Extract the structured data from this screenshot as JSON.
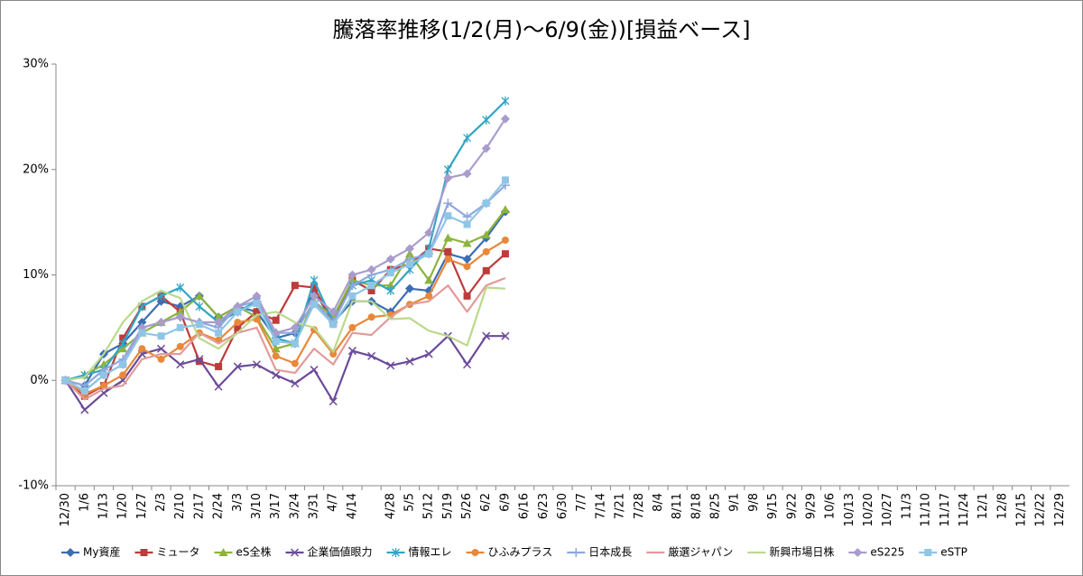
{
  "chart_data": {
    "type": "line",
    "title": "騰落率推移(1/2(月)～6/9(金))[損益ベース]",
    "categories": [
      "12/30",
      "1/6",
      "1/13",
      "1/20",
      "1/27",
      "2/3",
      "2/10",
      "2/17",
      "2/24",
      "3/3",
      "3/10",
      "3/17",
      "3/24",
      "3/31",
      "4/7",
      "4/14",
      null,
      "4/28",
      "5/5",
      "5/12",
      "5/19",
      "5/26",
      "6/2",
      "6/9",
      "6/16",
      "6/23",
      "6/30",
      "7/7",
      "7/14",
      "7/21",
      "7/28",
      "8/4",
      "8/11",
      "8/18",
      "8/25",
      "9/1",
      "9/8",
      "9/15",
      "9/22",
      "9/29",
      "10/6",
      "10/13",
      "10/20",
      "10/27",
      "11/3",
      "11/10",
      "11/17",
      "11/24",
      "12/1",
      "12/8",
      "12/15",
      "12/22",
      "12/29"
    ],
    "ylim": [
      -10,
      30
    ],
    "yticks": [
      {
        "value": -10,
        "label": "-10%"
      },
      {
        "value": 0,
        "label": "0%"
      },
      {
        "value": 10,
        "label": "10%"
      },
      {
        "value": 20,
        "label": "20%"
      },
      {
        "value": 30,
        "label": "30%"
      }
    ],
    "grid": false,
    "legend": "bottom",
    "series": [
      {
        "name": "My資産",
        "color": "#3a6eb5",
        "marker": "diamond",
        "values": [
          0,
          -0.5,
          2.5,
          3.5,
          5.5,
          7.5,
          7,
          8,
          6,
          7,
          6.5,
          4,
          4.5,
          8.5,
          5.5,
          7.5,
          7.5,
          6.5,
          8.7,
          8.5,
          12,
          11.5,
          13.5,
          16,
          null,
          null,
          null,
          null,
          null,
          null,
          null,
          null,
          null,
          null,
          null,
          null,
          null,
          null,
          null,
          null,
          null,
          null,
          null,
          null,
          null,
          null,
          null,
          null,
          null,
          null,
          null,
          null,
          null
        ]
      },
      {
        "name": "ミュータ",
        "color": "#be3b3b",
        "marker": "square",
        "values": [
          0,
          -1.5,
          -0.5,
          4,
          7,
          8,
          6.5,
          1.8,
          1.3,
          5,
          6.5,
          5.7,
          9,
          8.8,
          5.5,
          9.5,
          8.5,
          10.5,
          11,
          12.5,
          12.2,
          8,
          10.4,
          12,
          null,
          null,
          null,
          null,
          null,
          null,
          null,
          null,
          null,
          null,
          null,
          null,
          null,
          null,
          null,
          null,
          null,
          null,
          null,
          null,
          null,
          null,
          null,
          null,
          null,
          null,
          null,
          null,
          null
        ]
      },
      {
        "name": "eS全株",
        "color": "#8cb33e",
        "marker": "triangle",
        "values": [
          0,
          0.5,
          1.5,
          3,
          4.5,
          5.5,
          6.5,
          8,
          6,
          7,
          6,
          3,
          3.5,
          7.5,
          6,
          9.5,
          9,
          9,
          12,
          9.5,
          13.5,
          13,
          13.8,
          16.2,
          null,
          null,
          null,
          null,
          null,
          null,
          null,
          null,
          null,
          null,
          null,
          null,
          null,
          null,
          null,
          null,
          null,
          null,
          null,
          null,
          null,
          null,
          null,
          null,
          null,
          null,
          null,
          null,
          null
        ]
      },
      {
        "name": "企業価値眼力",
        "color": "#6b4a9a",
        "marker": "x",
        "values": [
          0,
          -2.8,
          -1.2,
          0,
          2.5,
          3,
          1.5,
          2,
          -0.6,
          1.3,
          1.5,
          0.5,
          -0.3,
          1,
          -2,
          2.8,
          2.3,
          1.4,
          1.8,
          2.5,
          4.2,
          1.5,
          4.2,
          4.2,
          null,
          null,
          null,
          null,
          null,
          null,
          null,
          null,
          null,
          null,
          null,
          null,
          null,
          null,
          null,
          null,
          null,
          null,
          null,
          null,
          null,
          null,
          null,
          null,
          null,
          null,
          null,
          null,
          null
        ]
      },
      {
        "name": "情報エレ",
        "color": "#33a5c4",
        "marker": "star",
        "values": [
          0,
          0.5,
          1,
          3.5,
          7,
          8,
          8.8,
          7,
          5.5,
          6.5,
          7.5,
          4,
          3.5,
          9.5,
          5.5,
          9,
          9.5,
          8.5,
          10.5,
          12.5,
          20,
          23,
          24.7,
          26.5,
          null,
          null,
          null,
          null,
          null,
          null,
          null,
          null,
          null,
          null,
          null,
          null,
          null,
          null,
          null,
          null,
          null,
          null,
          null,
          null,
          null,
          null,
          null,
          null,
          null,
          null,
          null,
          null,
          null
        ]
      },
      {
        "name": "ひふみプラス",
        "color": "#e8883a",
        "marker": "circle",
        "values": [
          0,
          -1.3,
          -0.5,
          0.5,
          3,
          2,
          3.2,
          4.5,
          3.8,
          5.5,
          5.8,
          2.3,
          1.6,
          4.8,
          2.5,
          5,
          6,
          6.2,
          7.2,
          8,
          11.5,
          10.8,
          12.2,
          13.3,
          null,
          null,
          null,
          null,
          null,
          null,
          null,
          null,
          null,
          null,
          null,
          null,
          null,
          null,
          null,
          null,
          null,
          null,
          null,
          null,
          null,
          null,
          null,
          null,
          null,
          null,
          null,
          null,
          null
        ]
      },
      {
        "name": "日本成長",
        "color": "#8ea8de",
        "marker": "plus",
        "values": [
          0,
          -0.5,
          1,
          2,
          5,
          5.5,
          6,
          5.5,
          5,
          7,
          7.5,
          4.5,
          4.5,
          7.5,
          5.5,
          9,
          10,
          10.5,
          11.5,
          12,
          16.8,
          15.5,
          16.8,
          18.5,
          null,
          null,
          null,
          null,
          null,
          null,
          null,
          null,
          null,
          null,
          null,
          null,
          null,
          null,
          null,
          null,
          null,
          null,
          null,
          null,
          null,
          null,
          null,
          null,
          null,
          null,
          null,
          null,
          null
        ]
      },
      {
        "name": "厳選ジャパン",
        "color": "#e29a9a",
        "marker": "none",
        "values": [
          0,
          -1.8,
          -0.8,
          -0.5,
          2,
          2.5,
          2.5,
          4.5,
          3.5,
          4.5,
          5,
          1,
          0.7,
          3,
          1.5,
          4.5,
          4.3,
          6,
          7.2,
          7.5,
          9,
          6.5,
          9,
          9.7,
          null,
          null,
          null,
          null,
          null,
          null,
          null,
          null,
          null,
          null,
          null,
          null,
          null,
          null,
          null,
          null,
          null,
          null,
          null,
          null,
          null,
          null,
          null,
          null,
          null,
          null,
          null,
          null,
          null
        ]
      },
      {
        "name": "新興市場日株",
        "color": "#bcd98b",
        "marker": "none",
        "values": [
          0,
          0.3,
          2.5,
          5.5,
          7.5,
          8.5,
          7.8,
          4,
          3,
          4.5,
          6.2,
          6.5,
          5.5,
          5,
          2.7,
          7.5,
          7.5,
          5.8,
          5.9,
          4.7,
          4.2,
          3.3,
          8.8,
          8.7,
          null,
          null,
          null,
          null,
          null,
          null,
          null,
          null,
          null,
          null,
          null,
          null,
          null,
          null,
          null,
          null,
          null,
          null,
          null,
          null,
          null,
          null,
          null,
          null,
          null,
          null,
          null,
          null,
          null
        ]
      },
      {
        "name": "eS225",
        "color": "#a99ccc",
        "marker": "diamond",
        "values": [
          0,
          -1,
          0.5,
          1.5,
          5,
          5.5,
          6,
          5.5,
          5.5,
          7,
          8,
          4.5,
          5,
          8,
          6.5,
          10,
          10.5,
          11.5,
          12.5,
          14,
          19.2,
          19.6,
          22,
          24.8,
          null,
          null,
          null,
          null,
          null,
          null,
          null,
          null,
          null,
          null,
          null,
          null,
          null,
          null,
          null,
          null,
          null,
          null,
          null,
          null,
          null,
          null,
          null,
          null,
          null,
          null,
          null,
          null,
          null
        ]
      },
      {
        "name": "eSTP",
        "color": "#8fc6e6",
        "marker": "square",
        "values": [
          0,
          -1,
          0.5,
          1.5,
          4.5,
          4.2,
          5,
          5.3,
          4.5,
          6.5,
          7.3,
          3.7,
          3.5,
          7.2,
          5.3,
          8,
          9,
          10.2,
          11,
          12,
          15.6,
          14.8,
          16.8,
          19,
          null,
          null,
          null,
          null,
          null,
          null,
          null,
          null,
          null,
          null,
          null,
          null,
          null,
          null,
          null,
          null,
          null,
          null,
          null,
          null,
          null,
          null,
          null,
          null,
          null,
          null,
          null,
          null,
          null
        ]
      }
    ]
  }
}
